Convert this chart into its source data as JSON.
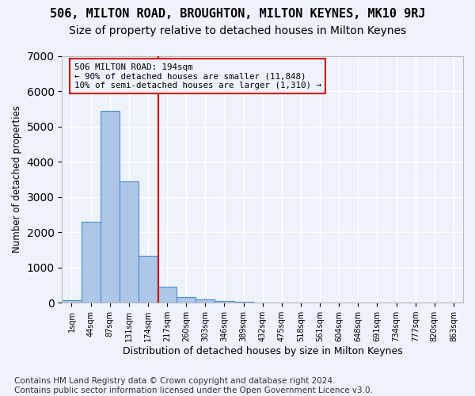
{
  "title1": "506, MILTON ROAD, BROUGHTON, MILTON KEYNES, MK10 9RJ",
  "title2": "Size of property relative to detached houses in Milton Keynes",
  "xlabel": "Distribution of detached houses by size in Milton Keynes",
  "ylabel": "Number of detached properties",
  "footnote": "Contains HM Land Registry data © Crown copyright and database right 2024.\nContains public sector information licensed under the Open Government Licence v3.0.",
  "bin_labels": [
    "1sqm",
    "44sqm",
    "87sqm",
    "131sqm",
    "174sqm",
    "217sqm",
    "260sqm",
    "303sqm",
    "346sqm",
    "389sqm",
    "432sqm",
    "475sqm",
    "518sqm",
    "561sqm",
    "604sqm",
    "648sqm",
    "691sqm",
    "734sqm",
    "777sqm",
    "820sqm",
    "863sqm"
  ],
  "bar_values": [
    75,
    2300,
    5450,
    3450,
    1320,
    460,
    155,
    85,
    50,
    30,
    0,
    0,
    0,
    0,
    0,
    0,
    0,
    0,
    0,
    0,
    0
  ],
  "bar_color": "#aec6e8",
  "bar_edgecolor": "#4f8fcc",
  "vline_x": 4.55,
  "vline_color": "#cc0000",
  "annotation_text": "506 MILTON ROAD: 194sqm\n← 90% of detached houses are smaller (11,848)\n10% of semi-detached houses are larger (1,310) →",
  "annotation_box_color": "#cc0000",
  "ylim": [
    0,
    7000
  ],
  "background_color": "#eef2fb",
  "grid_color": "#ffffff",
  "title1_fontsize": 11,
  "title2_fontsize": 10,
  "footnote_fontsize": 7.5
}
